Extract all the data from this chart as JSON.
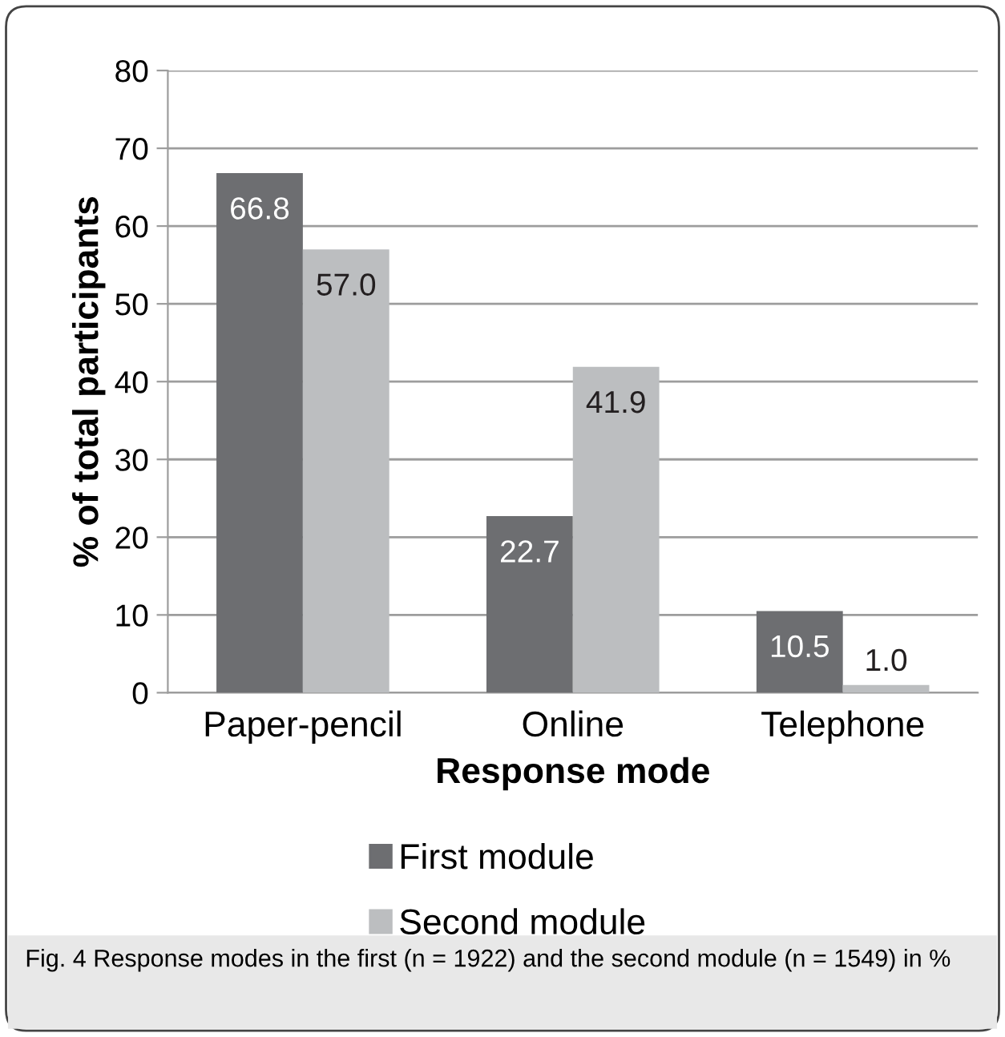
{
  "chart_data": {
    "type": "bar",
    "xlabel": "Response mode",
    "ylabel": "% of total participants",
    "categories": [
      "Paper-pencil",
      "Online",
      "Telephone"
    ],
    "series": [
      {
        "name": "First module",
        "color": "#6d6e71",
        "values": [
          66.8,
          22.7,
          10.5
        ],
        "value_labels": [
          "66.8",
          "22.7",
          "10.5"
        ]
      },
      {
        "name": "Second module",
        "color": "#bcbec0",
        "values": [
          57.0,
          41.9,
          1.0
        ],
        "value_labels": [
          "57.0",
          "41.9",
          "1.0"
        ]
      }
    ],
    "ylim": [
      0,
      80
    ],
    "yticks": [
      0,
      10,
      20,
      30,
      40,
      50,
      60,
      70,
      80
    ],
    "grid": "y",
    "legend": "bottom",
    "annotations": [
      "Fig. 4 Response modes in the first (n = 1922) and the second module (n = 1549) in %"
    ]
  }
}
